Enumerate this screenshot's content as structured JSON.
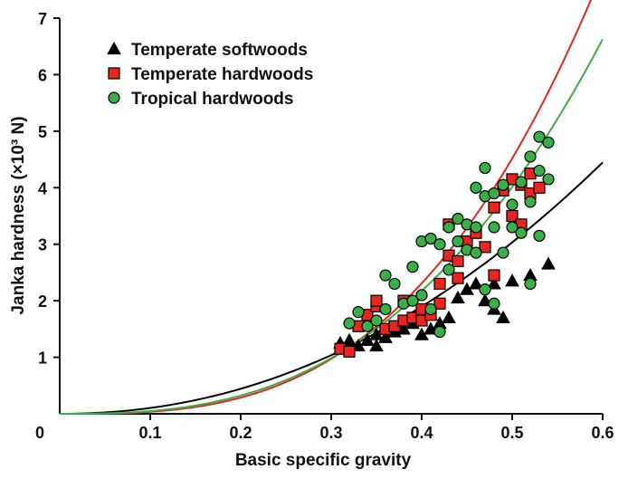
{
  "chart_data": {
    "type": "scatter",
    "title": "",
    "xlabel": "Basic specific gravity",
    "ylabel": "Janka hardness (×10³ N)",
    "xlim": [
      0,
      0.6
    ],
    "ylim": [
      0,
      7
    ],
    "x_ticks": [
      "0",
      "0.1",
      "0.2",
      "0.3",
      "0.4",
      "0.5",
      "0.6"
    ],
    "y_ticks": [
      "1",
      "2",
      "3",
      "4",
      "5",
      "6",
      "7"
    ],
    "grid": false,
    "legend_position": "top-left",
    "series": [
      {
        "name": "Temperate softwoods",
        "marker": "triangle",
        "color": "#000000",
        "points": [
          [
            0.31,
            1.25
          ],
          [
            0.32,
            1.3
          ],
          [
            0.33,
            1.2
          ],
          [
            0.34,
            1.3
          ],
          [
            0.35,
            1.2
          ],
          [
            0.35,
            1.4
          ],
          [
            0.36,
            1.35
          ],
          [
            0.37,
            1.45
          ],
          [
            0.38,
            1.5
          ],
          [
            0.39,
            1.6
          ],
          [
            0.4,
            1.4
          ],
          [
            0.41,
            1.5
          ],
          [
            0.41,
            1.75
          ],
          [
            0.42,
            1.6
          ],
          [
            0.43,
            1.7
          ],
          [
            0.44,
            2.05
          ],
          [
            0.45,
            2.2
          ],
          [
            0.46,
            2.3
          ],
          [
            0.47,
            2.0
          ],
          [
            0.48,
            1.85
          ],
          [
            0.48,
            2.3
          ],
          [
            0.49,
            1.7
          ],
          [
            0.5,
            2.35
          ],
          [
            0.52,
            2.45
          ],
          [
            0.54,
            2.65
          ]
        ]
      },
      {
        "name": "Temperate hardwoods",
        "marker": "square",
        "color": "#e8261f",
        "points": [
          [
            0.31,
            1.15
          ],
          [
            0.32,
            1.1
          ],
          [
            0.33,
            1.55
          ],
          [
            0.34,
            1.75
          ],
          [
            0.35,
            1.9
          ],
          [
            0.35,
            2.0
          ],
          [
            0.36,
            1.5
          ],
          [
            0.37,
            1.55
          ],
          [
            0.38,
            1.65
          ],
          [
            0.38,
            2.0
          ],
          [
            0.39,
            1.7
          ],
          [
            0.4,
            1.85
          ],
          [
            0.4,
            1.65
          ],
          [
            0.41,
            1.75
          ],
          [
            0.42,
            1.95
          ],
          [
            0.42,
            2.3
          ],
          [
            0.43,
            2.8
          ],
          [
            0.43,
            3.35
          ],
          [
            0.44,
            2.4
          ],
          [
            0.44,
            2.7
          ],
          [
            0.45,
            3.05
          ],
          [
            0.46,
            3.2
          ],
          [
            0.47,
            2.95
          ],
          [
            0.48,
            2.45
          ],
          [
            0.48,
            3.65
          ],
          [
            0.49,
            3.95
          ],
          [
            0.5,
            3.5
          ],
          [
            0.5,
            4.15
          ],
          [
            0.51,
            3.35
          ],
          [
            0.51,
            4.05
          ],
          [
            0.52,
            4.25
          ],
          [
            0.52,
            3.9
          ],
          [
            0.53,
            4.0
          ]
        ]
      },
      {
        "name": "Tropical hardwoods",
        "marker": "circle",
        "color": "#3aae48",
        "points": [
          [
            0.32,
            1.6
          ],
          [
            0.33,
            1.8
          ],
          [
            0.34,
            1.55
          ],
          [
            0.35,
            1.65
          ],
          [
            0.36,
            2.45
          ],
          [
            0.36,
            1.85
          ],
          [
            0.37,
            2.3
          ],
          [
            0.38,
            1.95
          ],
          [
            0.39,
            2.6
          ],
          [
            0.39,
            2.0
          ],
          [
            0.4,
            3.05
          ],
          [
            0.4,
            2.1
          ],
          [
            0.41,
            3.1
          ],
          [
            0.41,
            1.85
          ],
          [
            0.42,
            3.0
          ],
          [
            0.42,
            1.45
          ],
          [
            0.43,
            2.55
          ],
          [
            0.43,
            3.3
          ],
          [
            0.44,
            3.45
          ],
          [
            0.44,
            3.05
          ],
          [
            0.45,
            3.35
          ],
          [
            0.45,
            2.9
          ],
          [
            0.46,
            3.3
          ],
          [
            0.46,
            2.85
          ],
          [
            0.46,
            4.0
          ],
          [
            0.47,
            4.35
          ],
          [
            0.47,
            3.85
          ],
          [
            0.47,
            2.2
          ],
          [
            0.48,
            3.9
          ],
          [
            0.48,
            3.3
          ],
          [
            0.48,
            1.95
          ],
          [
            0.49,
            2.85
          ],
          [
            0.49,
            4.05
          ],
          [
            0.5,
            3.7
          ],
          [
            0.5,
            3.3
          ],
          [
            0.51,
            4.1
          ],
          [
            0.51,
            3.2
          ],
          [
            0.52,
            4.55
          ],
          [
            0.52,
            3.75
          ],
          [
            0.53,
            4.9
          ],
          [
            0.53,
            4.3
          ],
          [
            0.53,
            3.15
          ],
          [
            0.54,
            4.8
          ],
          [
            0.54,
            4.15
          ],
          [
            0.52,
            2.3
          ]
        ]
      }
    ],
    "fit_curves": [
      {
        "series": "Temperate softwoods",
        "color": "#000000",
        "a": 13.0,
        "b": 2.1
      },
      {
        "series": "Temperate hardwoods",
        "color": "#e8261f",
        "a": 36.4,
        "b": 3.01
      },
      {
        "series": "Tropical hardwoods",
        "color": "#3aae48",
        "a": 27.0,
        "b": 2.75
      }
    ]
  }
}
